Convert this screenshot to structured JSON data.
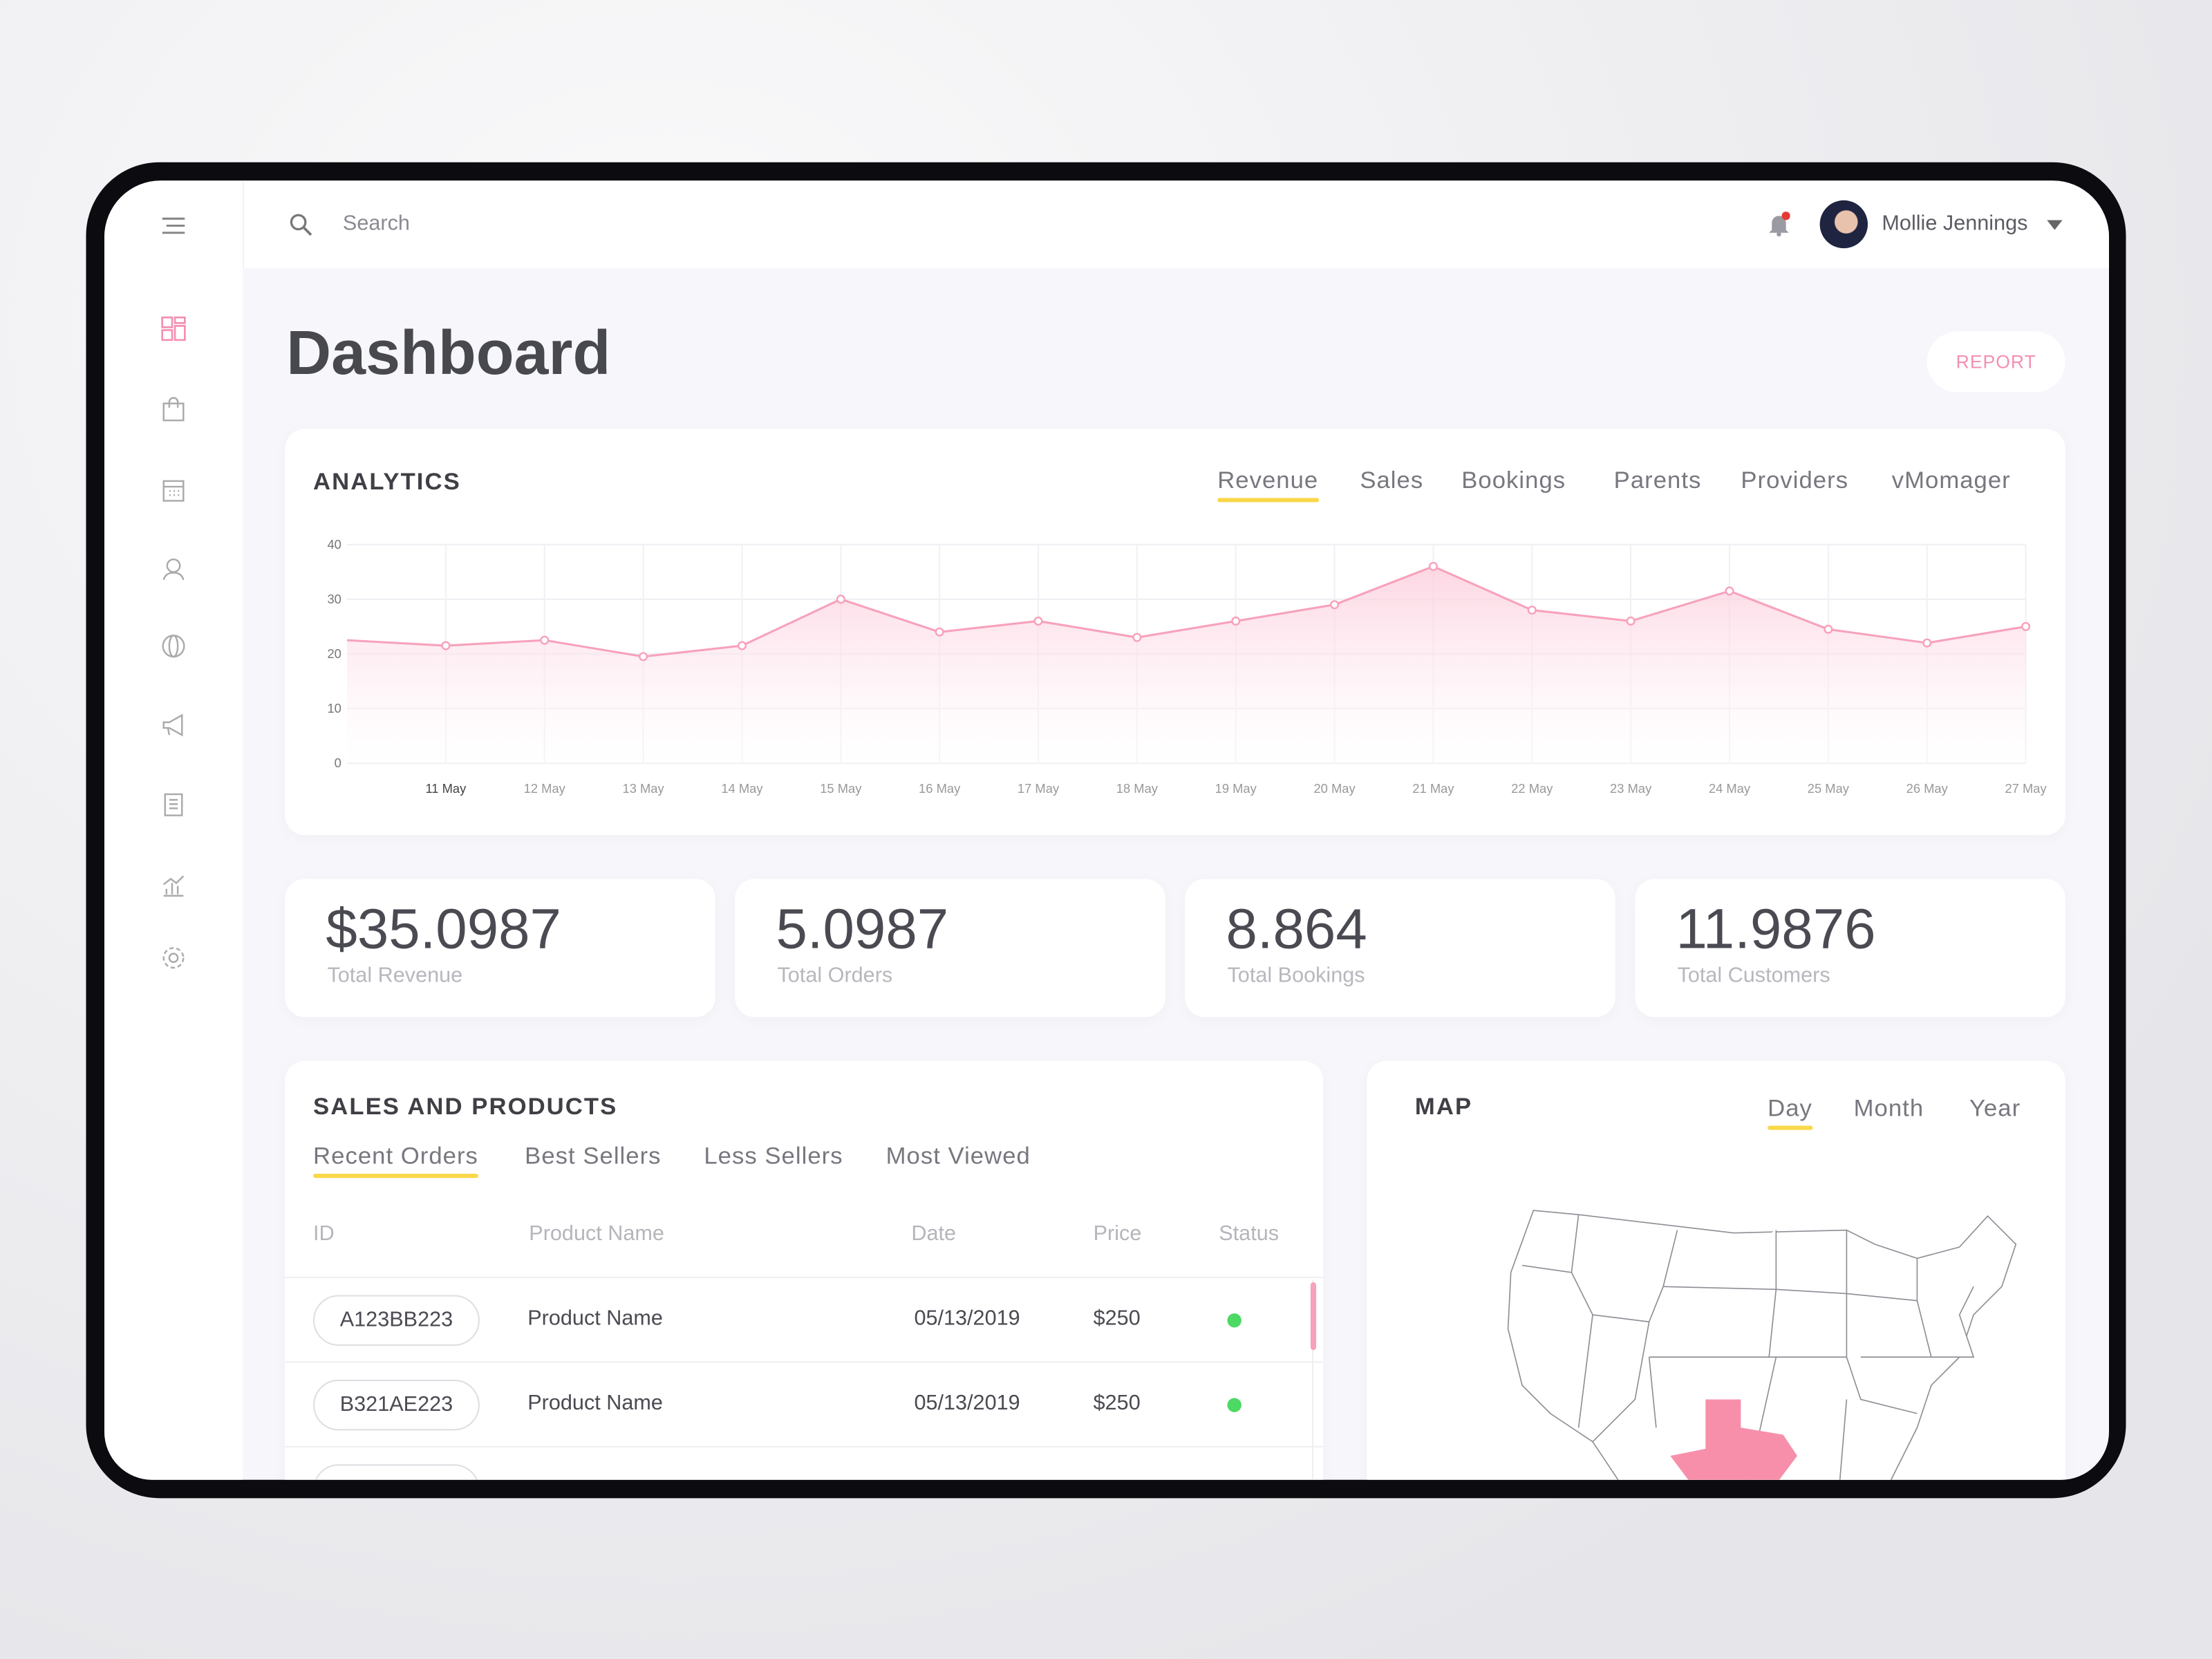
{
  "header": {
    "search_placeholder": "Search",
    "user_name": "Mollie Jennings",
    "notification_color": "#e53935"
  },
  "sidebar": {
    "items": [
      "dashboard-icon",
      "shopping-bag-icon",
      "calendar-icon",
      "user-icon",
      "globe-icon",
      "megaphone-icon",
      "document-icon",
      "chart-icon",
      "gear-icon"
    ],
    "active_color": "#f48fb1"
  },
  "page": {
    "title": "Dashboard",
    "report_label": "REPORT"
  },
  "analytics": {
    "title": "ANALYTICS",
    "tabs": [
      "Revenue",
      "Sales",
      "Bookings",
      "Parents",
      "Providers",
      "vMomager"
    ],
    "active_tab": "Revenue"
  },
  "chart_data": {
    "type": "area",
    "x_labels": [
      "",
      "11 May",
      "12 May",
      "13 May",
      "14 May",
      "15 May",
      "16 May",
      "17 May",
      "18 May",
      "19 May",
      "20 May",
      "21 May",
      "22 May",
      "23 May",
      "24 May",
      "25 May",
      "26 May",
      "27 May"
    ],
    "values": [
      22.5,
      21.5,
      22.5,
      19.5,
      21.5,
      30,
      24,
      26,
      23,
      26,
      29,
      36,
      28,
      26,
      31.5,
      24.5,
      22,
      25
    ],
    "y_ticks": [
      0,
      10,
      20,
      30,
      40
    ],
    "ylim": [
      0,
      40
    ],
    "grid": true,
    "color": "#f7a1bb"
  },
  "stats": [
    {
      "value": "$35.0987",
      "label": "Total Revenue"
    },
    {
      "value": "5.0987",
      "label": "Total Orders"
    },
    {
      "value": "8.864",
      "label": "Total Bookings"
    },
    {
      "value": "11.9876",
      "label": "Total Customers"
    }
  ],
  "sales": {
    "title": "SALES AND PRODUCTS",
    "tabs": [
      "Recent Orders",
      "Best Sellers",
      "Less Sellers",
      "Most Viewed"
    ],
    "columns": [
      "ID",
      "Product Name",
      "Date",
      "Price",
      "Status"
    ],
    "rows": [
      {
        "id": "A123BB223",
        "product": "Product Name",
        "date": "05/13/2019",
        "price": "$250",
        "status": "active"
      },
      {
        "id": "B321AE223",
        "product": "Product Name",
        "date": "05/13/2019",
        "price": "$250",
        "status": "active"
      }
    ]
  },
  "map": {
    "title": "MAP",
    "tabs": [
      "Day",
      "Month",
      "Year"
    ],
    "highlight_color": "#f78fab"
  }
}
